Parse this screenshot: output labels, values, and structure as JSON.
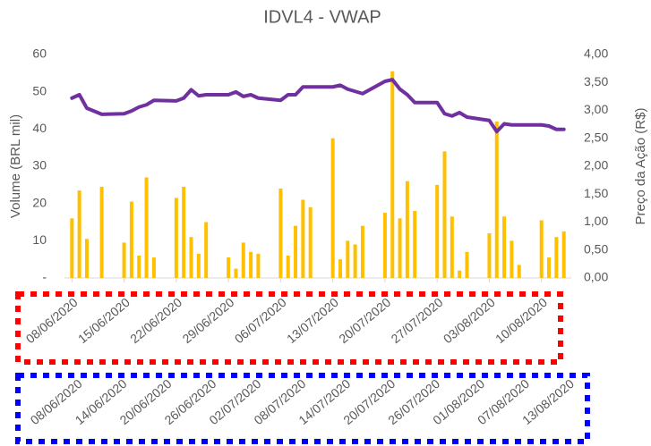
{
  "chart_data": {
    "type": "bar_line",
    "title": "IDVL4 - VWAP",
    "ylabel": "Volume (BRL mil)",
    "y2label": "Preço da Ação (R$)",
    "x": [
      "08/06/2020",
      "09/06/2020",
      "10/06/2020",
      "12/06/2020",
      "15/06/2020",
      "16/06/2020",
      "17/06/2020",
      "18/06/2020",
      "19/06/2020",
      "22/06/2020",
      "23/06/2020",
      "24/06/2020",
      "25/06/2020",
      "26/06/2020",
      "29/06/2020",
      "30/06/2020",
      "01/07/2020",
      "02/07/2020",
      "03/07/2020",
      "06/07/2020",
      "07/07/2020",
      "08/07/2020",
      "09/07/2020",
      "10/07/2020",
      "13/07/2020",
      "14/07/2020",
      "15/07/2020",
      "16/07/2020",
      "17/07/2020",
      "20/07/2020",
      "21/07/2020",
      "22/07/2020",
      "23/07/2020",
      "24/07/2020",
      "27/07/2020",
      "28/07/2020",
      "29/07/2020",
      "30/07/2020",
      "31/07/2020",
      "03/08/2020",
      "04/08/2020",
      "05/08/2020",
      "06/08/2020",
      "07/08/2020",
      "10/08/2020",
      "11/08/2020",
      "12/08/2020",
      "13/08/2020"
    ],
    "series": [
      {
        "name": "Volume",
        "type": "bar",
        "color": "#ffc000",
        "values": [
          16,
          23.5,
          10.5,
          24.5,
          9.5,
          20.5,
          6,
          27,
          5.5,
          21.5,
          24.5,
          11,
          6.5,
          15,
          5.5,
          2.5,
          9.5,
          7,
          6.5,
          24,
          6,
          14,
          21,
          19,
          37.5,
          5,
          10,
          9,
          14,
          17.5,
          55.5,
          16,
          26,
          18,
          25,
          34,
          16.5,
          2,
          7,
          12,
          42,
          16.5,
          10,
          3.5,
          15.5,
          5.5,
          11,
          12.5
        ]
      },
      {
        "name": "VWAP",
        "type": "line",
        "axis": "y2",
        "color": "#7030a0",
        "values": [
          3.22,
          3.28,
          3.04,
          2.93,
          2.94,
          2.99,
          3.06,
          3.1,
          3.18,
          3.17,
          3.22,
          3.37,
          3.26,
          3.28,
          3.28,
          3.33,
          3.25,
          3.28,
          3.22,
          3.18,
          3.28,
          3.28,
          3.42,
          3.42,
          3.42,
          3.45,
          3.38,
          3.34,
          3.3,
          3.52,
          3.55,
          3.38,
          3.28,
          3.14,
          3.14,
          2.94,
          2.9,
          2.96,
          2.88,
          2.82,
          2.62,
          2.76,
          2.74,
          2.74,
          2.74,
          2.72,
          2.66,
          2.66
        ]
      }
    ],
    "xlim": [
      "07/06/2020",
      "14/08/2020"
    ],
    "xticks": [
      "08/06/2020",
      "15/06/2020",
      "22/06/2020",
      "29/06/2020",
      "06/07/2020",
      "13/07/2020",
      "20/07/2020",
      "27/07/2020",
      "03/08/2020",
      "10/08/2020"
    ],
    "xticks_alt": [
      "08/06/2020",
      "14/06/2020",
      "20/06/2020",
      "26/06/2020",
      "02/07/2020",
      "08/07/2020",
      "14/07/2020",
      "20/07/2020",
      "26/07/2020",
      "01/08/2020",
      "07/08/2020",
      "13/08/2020"
    ],
    "ylim": [
      0,
      60
    ],
    "yticks": [
      {
        "value": 0,
        "label": "-"
      },
      10,
      20,
      30,
      40,
      50,
      60
    ],
    "y2lim": [
      0,
      4
    ],
    "y2ticks": [
      {
        "value": 0,
        "label": "0,00"
      },
      {
        "value": 0.5,
        "label": "0,50"
      },
      {
        "value": 1,
        "label": "1,00"
      },
      {
        "value": 1.5,
        "label": "1,50"
      },
      {
        "value": 2,
        "label": "2,00"
      },
      {
        "value": 2.5,
        "label": "2,50"
      },
      {
        "value": 3,
        "label": "3,00"
      },
      {
        "value": 3.5,
        "label": "3,50"
      },
      {
        "value": 4,
        "label": "4,00"
      }
    ],
    "grid": false
  }
}
